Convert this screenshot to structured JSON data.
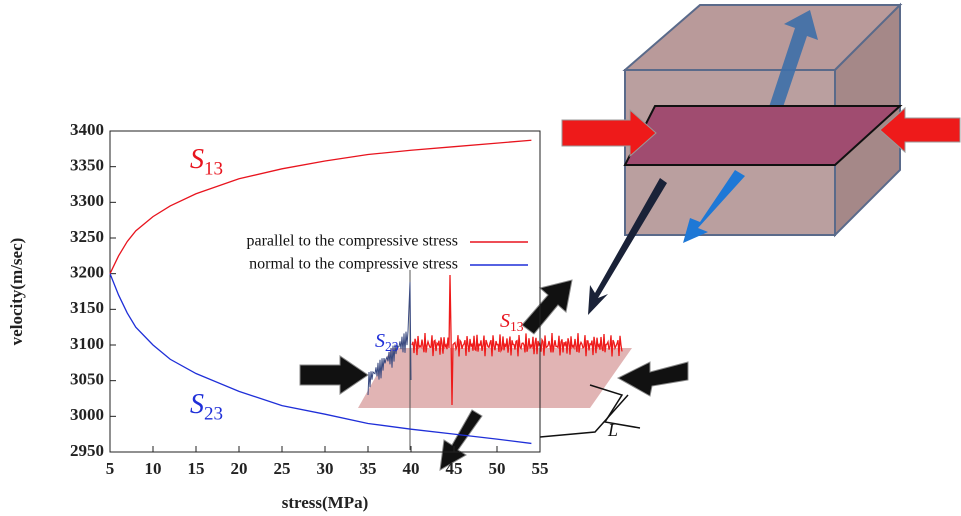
{
  "chart_data": {
    "type": "line",
    "xlabel": "stress(MPa)",
    "ylabel": "velocity(m/sec)",
    "x": [
      5,
      6,
      7,
      8,
      10,
      12,
      15,
      20,
      25,
      30,
      35,
      40,
      45,
      50,
      54
    ],
    "series": [
      {
        "name": "parallel to the compressive stress",
        "color": "#e8141e",
        "values": [
          3200,
          3225,
          3245,
          3260,
          3280,
          3295,
          3312,
          3333,
          3347,
          3358,
          3367,
          3373,
          3378,
          3383,
          3387
        ]
      },
      {
        "name": "normal to the compressive stress",
        "color": "#1f2fd8",
        "values": [
          3200,
          3170,
          3145,
          3125,
          3100,
          3080,
          3060,
          3035,
          3015,
          3003,
          2990,
          2982,
          2975,
          2968,
          2962
        ]
      }
    ],
    "xlim": [
      5,
      55
    ],
    "ylim": [
      2950,
      3400
    ],
    "xticks": [
      5,
      10,
      15,
      20,
      25,
      30,
      35,
      40,
      45,
      50,
      55
    ],
    "yticks": [
      2950,
      3000,
      3050,
      3100,
      3150,
      3200,
      3250,
      3300,
      3350,
      3400
    ],
    "legend": "center",
    "annotations": [
      {
        "text": "S",
        "subscript": "13",
        "color": "#e8141e"
      },
      {
        "text": "S",
        "subscript": "23",
        "color": "#1f2fd8"
      }
    ],
    "diagram_labels": [
      {
        "text": "S",
        "subscript": "23",
        "color": "#1f2fd8"
      },
      {
        "text": "S",
        "subscript": "13",
        "color": "#e8141e"
      },
      {
        "text": "L",
        "color": "#111"
      }
    ]
  }
}
